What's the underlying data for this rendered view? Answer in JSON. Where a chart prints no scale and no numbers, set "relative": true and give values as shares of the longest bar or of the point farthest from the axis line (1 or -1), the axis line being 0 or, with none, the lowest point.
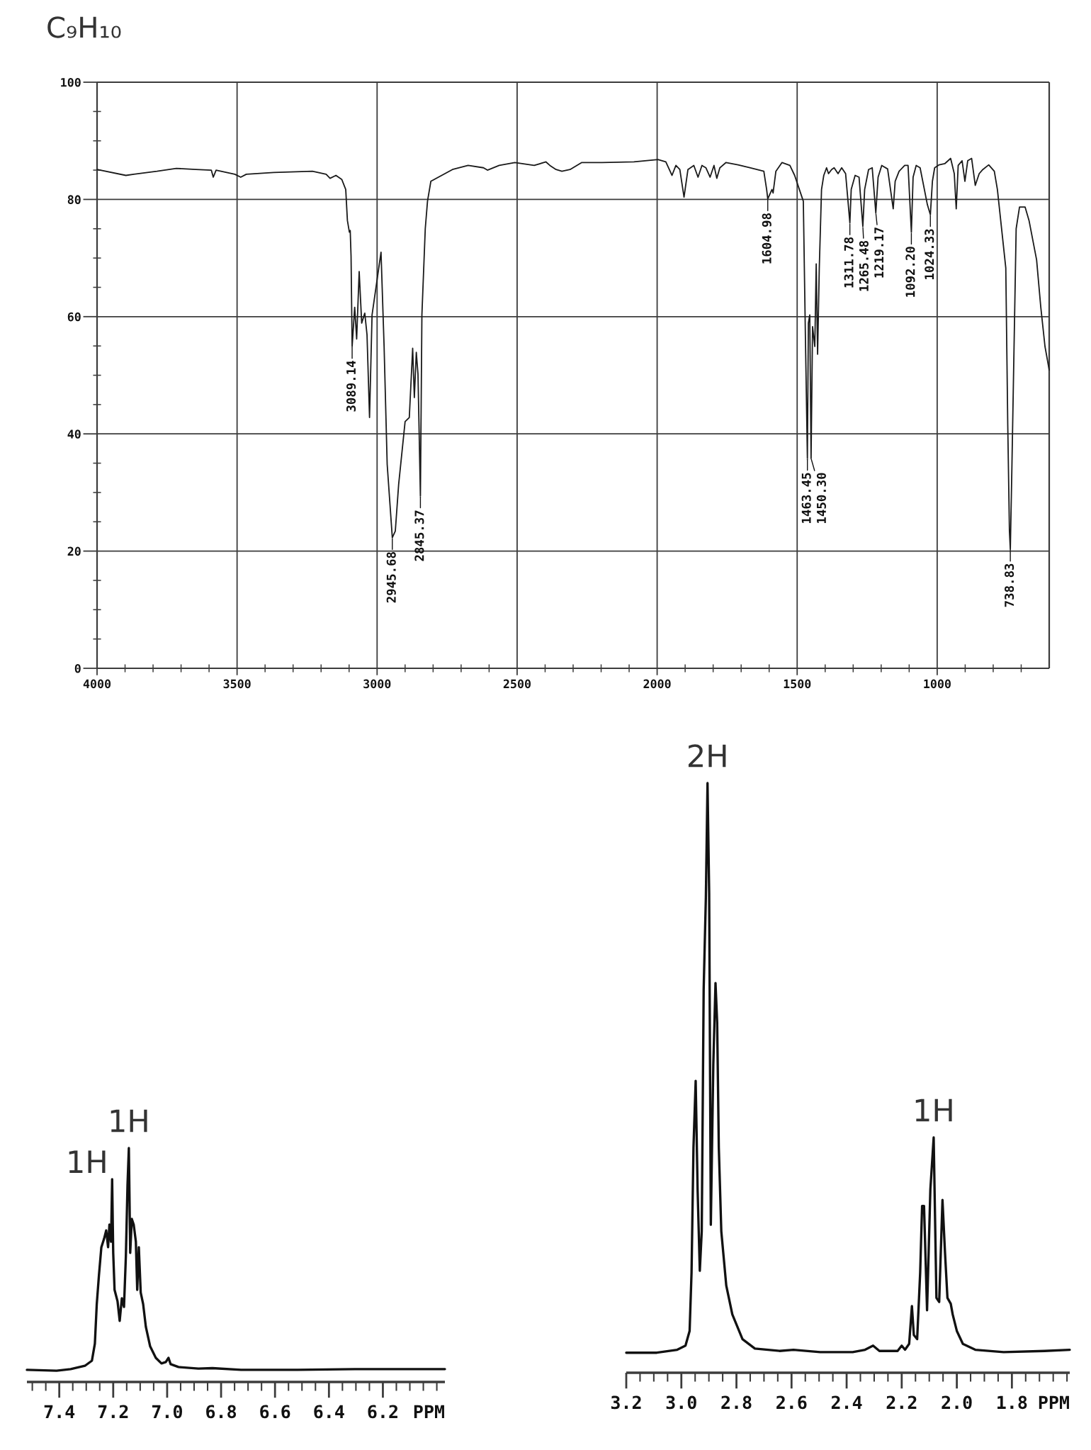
{
  "chart_data": [
    {
      "type": "line",
      "title": "C₉H₁₀",
      "color": "#1a1a1a",
      "grid": true,
      "xlim": [
        4000,
        600
      ],
      "ylim": [
        0,
        100
      ],
      "xticks": [
        4000,
        {
          "value": 3900,
          "label": null
        },
        {
          "value": 3800,
          "label": null
        },
        {
          "value": 3700,
          "label": null
        },
        {
          "value": 3600,
          "label": null
        },
        3500,
        {
          "value": 3400,
          "label": null
        },
        {
          "value": 3300,
          "label": null
        },
        {
          "value": 3200,
          "label": null
        },
        {
          "value": 3100,
          "label": null
        },
        3000,
        {
          "value": 2900,
          "label": null
        },
        {
          "value": 2800,
          "label": null
        },
        {
          "value": 2700,
          "label": null
        },
        {
          "value": 2600,
          "label": null
        },
        2500,
        {
          "value": 2400,
          "label": null
        },
        {
          "value": 2300,
          "label": null
        },
        {
          "value": 2200,
          "label": null
        },
        {
          "value": 2100,
          "label": null
        },
        2000,
        {
          "value": 1900,
          "label": null
        },
        {
          "value": 1800,
          "label": null
        },
        {
          "value": 1700,
          "label": null
        },
        {
          "value": 1600,
          "label": null
        },
        1500,
        {
          "value": 1400,
          "label": null
        },
        {
          "value": 1300,
          "label": null
        },
        {
          "value": 1200,
          "label": null
        },
        {
          "value": 1100,
          "label": null
        },
        1000,
        {
          "value": 900,
          "label": null
        },
        {
          "value": 800,
          "label": null
        },
        {
          "value": 700,
          "label": null
        }
      ],
      "yticks": [
        0,
        {
          "value": 5,
          "label": null
        },
        {
          "value": 10,
          "label": null
        },
        {
          "value": 15,
          "label": null
        },
        20,
        {
          "value": 25,
          "label": null
        },
        {
          "value": 30,
          "label": null
        },
        {
          "value": 35,
          "label": null
        },
        40,
        {
          "value": 45,
          "label": null
        },
        {
          "value": 50,
          "label": null
        },
        {
          "value": 55,
          "label": null
        },
        60,
        {
          "value": 65,
          "label": null
        },
        {
          "value": 70,
          "label": null
        },
        {
          "value": 75,
          "label": null
        },
        80,
        {
          "value": 85,
          "label": null
        },
        {
          "value": 90,
          "label": null
        },
        {
          "value": 95,
          "label": null
        },
        100
      ],
      "x": [
        4000,
        3897,
        3869,
        3786,
        3717,
        3647,
        3592,
        3585,
        3575,
        3508,
        3487,
        3467,
        3369,
        3231,
        3182,
        3168,
        3147,
        3126,
        3112,
        3106,
        3099,
        3096,
        3093,
        3089.14,
        3080,
        3073,
        3064,
        3055,
        3044,
        3036,
        3027,
        3018,
        2986,
        2975,
        2964,
        2945.68,
        2935,
        2923,
        2900,
        2885,
        2873,
        2867,
        2860,
        2854,
        2845.37,
        2840,
        2828,
        2820,
        2808,
        2731,
        2675,
        2620,
        2606,
        2564,
        2508,
        2439,
        2397,
        2383,
        2361,
        2340,
        2311,
        2269,
        2197,
        2083,
        1997,
        1969,
        1947,
        1933,
        1919,
        1904,
        1890,
        1869,
        1854,
        1840,
        1826,
        1811,
        1797,
        1787,
        1776,
        1754,
        1711,
        1669,
        1619,
        1609,
        1604.98,
        1590,
        1586,
        1576,
        1554,
        1526,
        1509,
        1478,
        1470,
        1463.45,
        1460,
        1455,
        1450.3,
        1445,
        1437,
        1432,
        1427,
        1421,
        1413,
        1405,
        1395,
        1388,
        1377,
        1368,
        1354,
        1341,
        1327,
        1311.78,
        1307,
        1293,
        1279,
        1265.48,
        1259,
        1245,
        1232,
        1219.17,
        1211,
        1198,
        1177,
        1157,
        1150,
        1136,
        1116,
        1104,
        1092.2,
        1086,
        1075,
        1061,
        1035,
        1024.33,
        1017,
        1009,
        993,
        973,
        952,
        939,
        932,
        925,
        911,
        901,
        891,
        877,
        864,
        850,
        837,
        816,
        796,
        785,
        755,
        748,
        742,
        738.83,
        733,
        728,
        718,
        706,
        686,
        672,
        645,
        630,
        615,
        600
      ],
      "values": [
        85.1,
        84.1,
        84.3,
        84.8,
        85.3,
        85.1,
        85.0,
        83.8,
        85.0,
        84.3,
        83.8,
        84.3,
        84.6,
        84.8,
        84.3,
        83.6,
        84.1,
        83.4,
        81.7,
        76.4,
        74.4,
        74.7,
        70.3,
        54.9,
        61.6,
        56.2,
        67.7,
        58.9,
        60.6,
        56.9,
        42.8,
        60.3,
        71.0,
        54.9,
        34.8,
        22.3,
        23.4,
        31.4,
        42.1,
        42.8,
        54.6,
        46.2,
        53.9,
        50.2,
        29.4,
        60.3,
        75.0,
        79.7,
        83.1,
        85.1,
        85.8,
        85.4,
        85.0,
        85.8,
        86.3,
        85.8,
        86.4,
        85.8,
        85.1,
        84.8,
        85.1,
        86.3,
        86.3,
        86.4,
        86.8,
        86.4,
        84.1,
        85.8,
        85.1,
        80.4,
        85.1,
        85.8,
        83.8,
        85.8,
        85.4,
        83.8,
        85.8,
        83.6,
        85.4,
        86.3,
        85.9,
        85.4,
        84.8,
        81.7,
        80.1,
        81.7,
        81.1,
        84.8,
        86.3,
        85.8,
        84.1,
        79.7,
        54.9,
        35.8,
        58.9,
        60.3,
        35.8,
        58.3,
        54.9,
        69.0,
        53.6,
        68.3,
        81.7,
        84.1,
        85.4,
        84.4,
        85.1,
        85.4,
        84.4,
        85.4,
        84.4,
        76.0,
        81.7,
        84.1,
        83.8,
        75.4,
        81.7,
        85.1,
        85.4,
        77.7,
        83.8,
        85.8,
        85.2,
        78.4,
        83.1,
        84.8,
        85.8,
        85.8,
        74.4,
        83.8,
        85.8,
        85.4,
        79.1,
        77.4,
        83.1,
        85.4,
        85.9,
        86.1,
        87.0,
        84.4,
        78.4,
        85.8,
        86.6,
        83.1,
        86.6,
        87.0,
        82.4,
        84.4,
        85.1,
        85.9,
        84.8,
        81.7,
        68.3,
        41.5,
        23.4,
        20.3,
        34.8,
        48.2,
        75.0,
        78.7,
        78.7,
        76.4,
        69.7,
        61.6,
        54.9,
        50.9
      ],
      "annotations": [
        {
          "text": "3089.14",
          "x": 3089.14,
          "y": 54.9
        },
        {
          "text": "2945.68",
          "x": 2945.68,
          "y": 22.3
        },
        {
          "text": "2845.37",
          "x": 2845.37,
          "y": 29.4
        },
        {
          "text": "1604.98",
          "x": 1604.98,
          "y": 80.1
        },
        {
          "text": "1463.45",
          "x": 1463.45,
          "y": 35.8
        },
        {
          "text": "1450.30",
          "x": 1450.3,
          "y": 35.8
        },
        {
          "text": "1311.78",
          "x": 1311.78,
          "y": 76.0
        },
        {
          "text": "1265.48",
          "x": 1265.48,
          "y": 75.4
        },
        {
          "text": "1219.17",
          "x": 1219.17,
          "y": 77.7
        },
        {
          "text": "1092.20",
          "x": 1092.2,
          "y": 74.4
        },
        {
          "text": "1024.33",
          "x": 1024.33,
          "y": 77.4
        },
        {
          "text": "738.83",
          "x": 738.83,
          "y": 20.3
        }
      ]
    },
    {
      "type": "line",
      "relative": true,
      "tick_labels": "x",
      "color": "#111111",
      "xlabel": "PPM",
      "xlim": [
        7.52,
        5.97
      ],
      "xticks": [
        {
          "value": 6.0,
          "label": null
        },
        {
          "value": 6.05,
          "label": null
        },
        {
          "value": 6.1,
          "label": null
        },
        {
          "value": 6.15,
          "label": null
        },
        6.2,
        {
          "value": 6.25,
          "label": null
        },
        {
          "value": 6.3,
          "label": null
        },
        {
          "value": 6.35,
          "label": null
        },
        6.4,
        {
          "value": 6.45,
          "label": null
        },
        {
          "value": 6.5,
          "label": null
        },
        {
          "value": 6.55,
          "label": null
        },
        6.6,
        {
          "value": 6.65,
          "label": null
        },
        {
          "value": 6.7,
          "label": null
        },
        {
          "value": 6.75,
          "label": null
        },
        6.8,
        {
          "value": 6.85,
          "label": null
        },
        {
          "value": 6.9,
          "label": null
        },
        {
          "value": 6.95,
          "label": null
        },
        {
          "value": 7,
          "label": "7.0"
        },
        {
          "value": 7.05,
          "label": null
        },
        {
          "value": 7.1,
          "label": null
        },
        {
          "value": 7.15,
          "label": null
        },
        7.2,
        {
          "value": 7.25,
          "label": null
        },
        {
          "value": 7.3,
          "label": null
        },
        {
          "value": 7.35,
          "label": null
        },
        7.4,
        {
          "value": 7.45,
          "label": null
        },
        {
          "value": 7.5,
          "label": null
        }
      ],
      "x": [
        7.52,
        7.41,
        7.358,
        7.305,
        7.279,
        7.268,
        7.261,
        7.253,
        7.244,
        7.234,
        7.226,
        7.219,
        7.214,
        7.208,
        7.204,
        7.2,
        7.195,
        7.184,
        7.176,
        7.168,
        7.16,
        7.153,
        7.147,
        7.142,
        7.137,
        7.131,
        7.124,
        7.116,
        7.111,
        7.105,
        7.098,
        7.089,
        7.079,
        7.063,
        7.042,
        7.021,
        7.005,
        6.995,
        6.987,
        6.958,
        6.884,
        6.832,
        6.726,
        6.516,
        6.305,
        6.095,
        5.97
      ],
      "values": [
        0.052,
        0.048,
        0.055,
        0.069,
        0.091,
        0.164,
        0.333,
        0.455,
        0.576,
        0.612,
        0.648,
        0.576,
        0.673,
        0.6,
        0.867,
        0.552,
        0.394,
        0.345,
        0.261,
        0.358,
        0.321,
        0.539,
        0.842,
        1.0,
        0.552,
        0.697,
        0.673,
        0.6,
        0.394,
        0.576,
        0.382,
        0.333,
        0.236,
        0.152,
        0.103,
        0.079,
        0.085,
        0.103,
        0.076,
        0.064,
        0.057,
        0.059,
        0.052,
        0.052,
        0.055,
        0.055,
        0.055
      ],
      "annotations": [
        {
          "text": "1H",
          "x": 7.204,
          "y": 0.867
        },
        {
          "text": "1H",
          "x": 7.142,
          "y": 1.0
        }
      ]
    },
    {
      "type": "line",
      "relative": true,
      "tick_labels": "x",
      "color": "#111111",
      "xlabel": "PPM",
      "xlim": [
        3.2,
        1.59
      ],
      "xticks": [
        {
          "value": 1.6,
          "label": null
        },
        {
          "value": 1.65,
          "label": null
        },
        {
          "value": 1.7,
          "label": null
        },
        {
          "value": 1.75,
          "label": null
        },
        1.8,
        {
          "value": 1.85,
          "label": null
        },
        {
          "value": 1.9,
          "label": null
        },
        {
          "value": 1.95,
          "label": null
        },
        {
          "value": 2,
          "label": "2.0"
        },
        {
          "value": 2.05,
          "label": null
        },
        {
          "value": 2.1,
          "label": null
        },
        {
          "value": 2.15,
          "label": null
        },
        2.2,
        {
          "value": 2.25,
          "label": null
        },
        {
          "value": 2.3,
          "label": null
        },
        {
          "value": 2.35,
          "label": null
        },
        2.4,
        {
          "value": 2.45,
          "label": null
        },
        {
          "value": 2.5,
          "label": null
        },
        {
          "value": 2.55,
          "label": null
        },
        2.6,
        {
          "value": 2.65,
          "label": null
        },
        {
          "value": 2.7,
          "label": null
        },
        {
          "value": 2.75,
          "label": null
        },
        2.8,
        {
          "value": 2.85,
          "label": null
        },
        {
          "value": 2.9,
          "label": null
        },
        {
          "value": 2.95,
          "label": null
        },
        {
          "value": 3,
          "label": "3.0"
        },
        {
          "value": 3.05,
          "label": null
        },
        {
          "value": 3.1,
          "label": null
        },
        {
          "value": 3.15,
          "label": null
        },
        3.2
      ],
      "x": [
        3.2,
        3.089,
        3.015,
        2.985,
        2.97,
        2.963,
        2.956,
        2.948,
        2.941,
        2.933,
        2.926,
        2.919,
        2.911,
        2.905,
        2.899,
        2.893,
        2.884,
        2.876,
        2.87,
        2.864,
        2.855,
        2.837,
        2.815,
        2.778,
        2.733,
        2.644,
        2.593,
        2.496,
        2.378,
        2.333,
        2.304,
        2.281,
        2.215,
        2.2,
        2.188,
        2.173,
        2.163,
        2.156,
        2.144,
        2.133,
        2.126,
        2.119,
        2.108,
        2.096,
        2.084,
        2.074,
        2.064,
        2.052,
        2.043,
        2.034,
        2.022,
        2.015,
        2.0,
        1.978,
        1.933,
        1.83,
        1.681,
        1.59
      ],
      "values": [
        0.034,
        0.034,
        0.039,
        0.046,
        0.071,
        0.17,
        0.382,
        0.495,
        0.311,
        0.173,
        0.24,
        0.65,
        0.806,
        1.0,
        0.813,
        0.251,
        0.523,
        0.661,
        0.594,
        0.382,
        0.24,
        0.148,
        0.099,
        0.057,
        0.041,
        0.037,
        0.039,
        0.035,
        0.035,
        0.039,
        0.046,
        0.037,
        0.037,
        0.046,
        0.039,
        0.049,
        0.113,
        0.064,
        0.057,
        0.17,
        0.283,
        0.283,
        0.106,
        0.311,
        0.399,
        0.127,
        0.12,
        0.293,
        0.205,
        0.127,
        0.117,
        0.099,
        0.071,
        0.049,
        0.039,
        0.035,
        0.037,
        0.039
      ],
      "annotations": [
        {
          "text": "2H",
          "x": 2.905,
          "y": 1.0
        },
        {
          "text": "1H",
          "x": 2.084,
          "y": 0.399
        }
      ]
    }
  ]
}
